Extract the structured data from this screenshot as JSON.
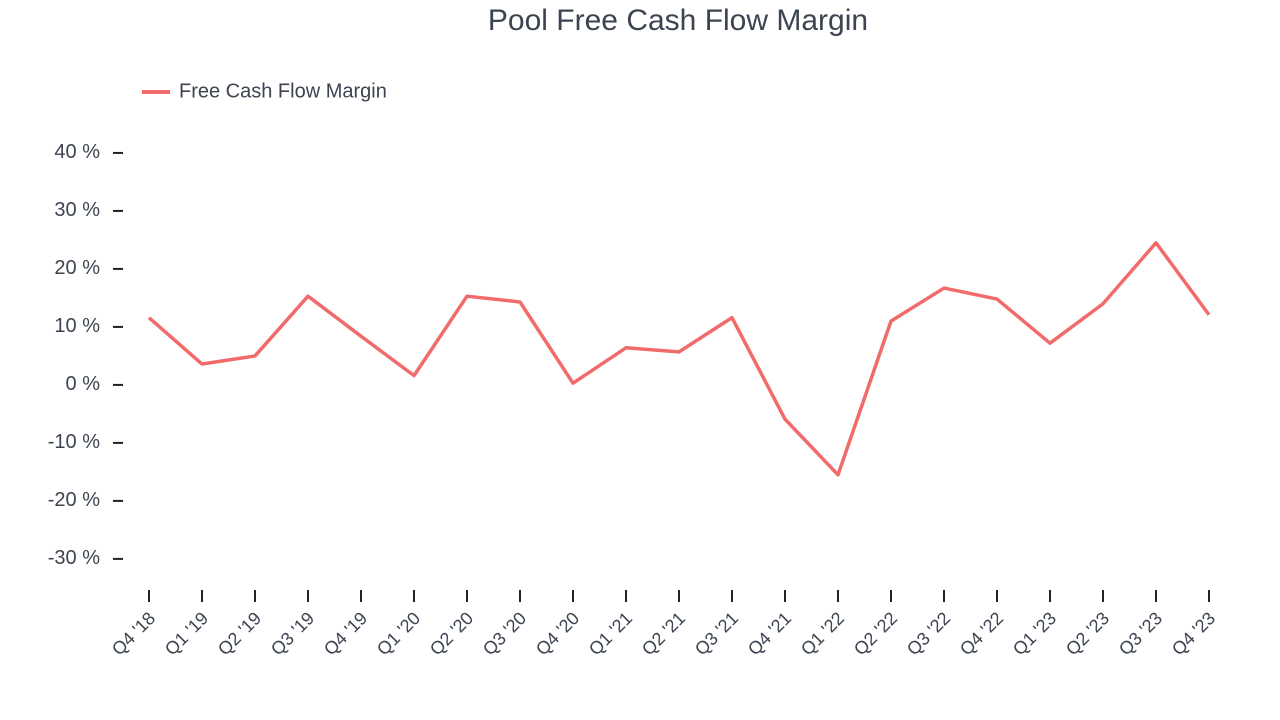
{
  "chart_data": {
    "type": "line",
    "title": "Pool Free Cash Flow Margin",
    "categories": [
      "Q4 '18",
      "Q1 '19",
      "Q2 '19",
      "Q3 '19",
      "Q4 '19",
      "Q1 '20",
      "Q2 '20",
      "Q3 '20",
      "Q4 '20",
      "Q1 '21",
      "Q2 '21",
      "Q3 '21",
      "Q4 '21",
      "Q1 '22",
      "Q2 '22",
      "Q3 '22",
      "Q4 '22",
      "Q1 '23",
      "Q2 '23",
      "Q3 '23",
      "Q4 '23"
    ],
    "series": [
      {
        "name": "Free Cash Flow Margin",
        "color": "#f26b6b",
        "values": [
          11.6,
          3.6,
          5.0,
          15.3,
          8.4,
          1.6,
          15.3,
          14.3,
          0.3,
          6.4,
          5.7,
          11.6,
          -5.9,
          -15.5,
          11.0,
          16.7,
          14.8,
          7.2,
          14.0,
          24.5,
          12.1
        ]
      }
    ],
    "ylim": [
      -34.5,
      44.3
    ],
    "yticks": [
      {
        "value": -30,
        "label": "-30 %"
      },
      {
        "value": -20,
        "label": "-20 %"
      },
      {
        "value": -10,
        "label": "-10 %"
      },
      {
        "value": 0,
        "label": "0 %"
      },
      {
        "value": 10,
        "label": "10 %"
      },
      {
        "value": 20,
        "label": "20 %"
      },
      {
        "value": 30,
        "label": "30 %"
      },
      {
        "value": 40,
        "label": "40 %"
      }
    ],
    "legend": "top-left"
  }
}
